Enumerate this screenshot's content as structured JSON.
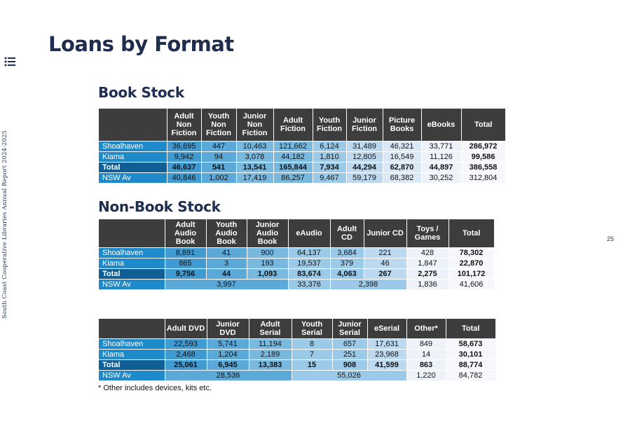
{
  "sidebar": {
    "report_label": "South Coast Cooperative Libraries Annual Report 2024-2025",
    "menu_icon": "list-icon"
  },
  "page": {
    "title": "Loans by Format",
    "number": "25"
  },
  "book_stock": {
    "title": "Book Stock",
    "headers": [
      "",
      "Adult Non Fiction",
      "Youth Non Fiction",
      "Junior Non Fiction",
      "Adult Fiction",
      "Youth Fiction",
      "Junior Fiction",
      "Picture Books",
      "eBooks",
      "Total"
    ],
    "rows": [
      {
        "label": "Shoalhaven",
        "values": [
          "36,695",
          "447",
          "10,463",
          "121,662",
          "6,124",
          "31,489",
          "46,321",
          "33,771",
          "286,972"
        ]
      },
      {
        "label": "Kiama",
        "values": [
          "9,942",
          "94",
          "3,078",
          "44,182",
          "1,810",
          "12,805",
          "16,549",
          "11,126",
          "99,586"
        ]
      },
      {
        "label": "Total",
        "values": [
          "46,637",
          "541",
          "13,541",
          "165,844",
          "7,934",
          "44,294",
          "62,870",
          "44,897",
          "386,558"
        ]
      },
      {
        "label": "NSW Av",
        "values": [
          "40,846",
          "1,002",
          "17,419",
          "86,257",
          "9,467",
          "59,179",
          "68,382",
          "30,252",
          "312,804"
        ]
      }
    ]
  },
  "non_book_stock": {
    "title": "Non-Book Stock",
    "headers": [
      "",
      "Adult Audio Book",
      "Youth Audio Book",
      "Junior Audio Book",
      "eAudio",
      "Adult CD",
      "Junior CD",
      "Toys / Games",
      "Total"
    ],
    "rows": [
      {
        "label": "Shoalhaven",
        "values": [
          "8,891",
          "41",
          "900",
          "64,137",
          "3,684",
          "221",
          "428",
          "78,302"
        ]
      },
      {
        "label": "Kiama",
        "values": [
          "865",
          "3",
          "193",
          "19,537",
          "379",
          "46",
          "1,847",
          "22,870"
        ]
      },
      {
        "label": "Total",
        "values": [
          "9,756",
          "44",
          "1,093",
          "83,674",
          "4,063",
          "267",
          "2,275",
          "101,172"
        ]
      }
    ],
    "nsw_row": {
      "label": "NSW Av",
      "audio_book": "3,997",
      "eaudio": "33,376",
      "cd": "2,398",
      "toys": "1,836",
      "total": "41,606"
    }
  },
  "media_stock": {
    "headers": [
      "",
      "Adult DVD",
      "Junior DVD",
      "Adult Serial",
      "Youth Serial",
      "Junior Serial",
      "eSerial",
      "Other*",
      "Total"
    ],
    "rows": [
      {
        "label": "Shoalhaven",
        "values": [
          "22,593",
          "5,741",
          "11,194",
          "8",
          "657",
          "17,631",
          "849",
          "58,673"
        ]
      },
      {
        "label": "Kiama",
        "values": [
          "2,468",
          "1,204",
          "2,189",
          "7",
          "251",
          "23,968",
          "14",
          "30,101"
        ]
      },
      {
        "label": "Total",
        "values": [
          "25,061",
          "6,945",
          "13,383",
          "15",
          "908",
          "41,599",
          "863",
          "88,774"
        ]
      }
    ],
    "nsw_row": {
      "label": "NSW Av",
      "dvd": "28,536",
      "serial": "55,026",
      "other": "1,220",
      "total": "84,782"
    }
  },
  "footnote": "* Other includes devices, kits etc.",
  "colors": {
    "title": "#1f2d4e",
    "header_bg": "#3d3d3d",
    "row_label_bg": "#1f8ac9",
    "total_label_bg": "#0f5f96"
  }
}
